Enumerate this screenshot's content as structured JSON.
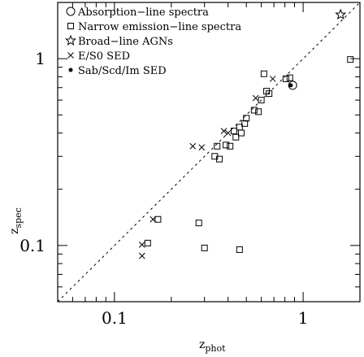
{
  "chart_data": {
    "type": "scatter",
    "xlabel_main": "z",
    "xlabel_sub": "phot",
    "ylabel_main": "z",
    "ylabel_sub": "spec",
    "xscale": "log",
    "yscale": "log",
    "xlim": [
      0.05,
      2.0
    ],
    "ylim": [
      0.05,
      2.0
    ],
    "x_tick_labels": [
      {
        "value": 0.1,
        "label": "0.1"
      },
      {
        "value": 1,
        "label": "1"
      }
    ],
    "y_tick_labels": [
      {
        "value": 0.1,
        "label": "0.1"
      },
      {
        "value": 1,
        "label": "1"
      }
    ],
    "reference_line": "one-to-one",
    "legend_position": "top-left",
    "series": [
      {
        "name": "Absorption−line spectra",
        "marker": "circle",
        "points": [
          [
            0.88,
            0.72
          ]
        ]
      },
      {
        "name": "Narrow emission−line spectra",
        "marker": "square",
        "points": [
          [
            1.78,
            0.99
          ],
          [
            0.62,
            0.83
          ],
          [
            0.81,
            0.78
          ],
          [
            0.85,
            0.79
          ],
          [
            0.64,
            0.67
          ],
          [
            0.66,
            0.65
          ],
          [
            0.6,
            0.6
          ],
          [
            0.55,
            0.53
          ],
          [
            0.58,
            0.52
          ],
          [
            0.5,
            0.48
          ],
          [
            0.49,
            0.45
          ],
          [
            0.46,
            0.43
          ],
          [
            0.43,
            0.41
          ],
          [
            0.47,
            0.4
          ],
          [
            0.44,
            0.38
          ],
          [
            0.39,
            0.345
          ],
          [
            0.41,
            0.34
          ],
          [
            0.35,
            0.34
          ],
          [
            0.34,
            0.3
          ],
          [
            0.36,
            0.29
          ],
          [
            0.17,
            0.138
          ],
          [
            0.28,
            0.132
          ],
          [
            0.15,
            0.103
          ],
          [
            0.3,
            0.097
          ],
          [
            0.46,
            0.095
          ]
        ]
      },
      {
        "name": "Broad−line AGNs",
        "marker": "star",
        "points": [
          [
            1.58,
            1.72
          ]
        ]
      },
      {
        "name": "E/S0 SED",
        "marker": "x",
        "points": [
          [
            0.69,
            0.78
          ],
          [
            0.56,
            0.615
          ],
          [
            0.4,
            0.4
          ],
          [
            0.38,
            0.41
          ],
          [
            0.26,
            0.34
          ],
          [
            0.29,
            0.335
          ],
          [
            0.14,
            0.101
          ],
          [
            0.16,
            0.138
          ],
          [
            0.14,
            0.088
          ]
        ]
      },
      {
        "name": "Sab/Scd/Im SED",
        "marker": "dot",
        "points": [
          [
            0.86,
            0.72
          ]
        ]
      }
    ]
  }
}
